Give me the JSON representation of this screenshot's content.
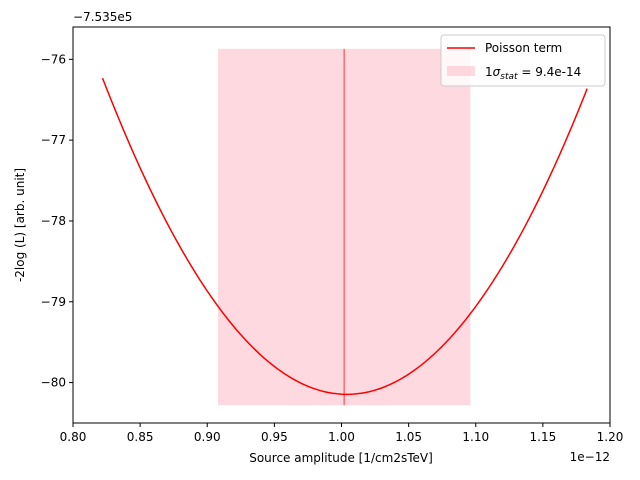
{
  "chart_data": {
    "type": "line",
    "xlabel": "Source amplitude [1/cm2sTeV]",
    "ylabel": "-2log (L) [arb. unit]",
    "x_offset_label": "1e−12",
    "y_offset_label": "−7.535e5",
    "x_scale_factor": 1e-12,
    "y_offset_value": -753500,
    "xlim": [
      0.8,
      1.2
    ],
    "ylim": [
      -80.5,
      -75.6
    ],
    "x_ticks": [
      0.8,
      0.85,
      0.9,
      0.95,
      1.0,
      1.05,
      1.1,
      1.15,
      1.2
    ],
    "x_tick_labels": [
      "0.80",
      "0.85",
      "0.90",
      "0.95",
      "1.00",
      "1.05",
      "1.10",
      "1.15",
      "1.20"
    ],
    "y_ticks": [
      -80,
      -79,
      -78,
      -77,
      -76
    ],
    "y_tick_labels": [
      "−80",
      "−79",
      "−78",
      "−77",
      "−76"
    ],
    "grid": false,
    "legend_position": "top-right",
    "series": [
      {
        "name": "Poisson term",
        "color": "#ff0000",
        "x": [
          0.822,
          0.85,
          0.88,
          0.91,
          0.94,
          0.97,
          1.0,
          1.03,
          1.06,
          1.09,
          1.12,
          1.15,
          1.183
        ],
        "y": [
          -76.05,
          -77.33,
          -78.46,
          -79.27,
          -79.78,
          -80.02,
          -80.07,
          -79.96,
          -79.68,
          -79.21,
          -78.55,
          -77.65,
          -76.45
        ]
      }
    ],
    "vline": {
      "x": 1.002,
      "y_range": [
        -80.28,
        -75.87
      ],
      "color": "#ff0000"
    },
    "band": {
      "label_prefix": "1",
      "label_sigma": "σ",
      "label_subscript": "stat",
      "label_value": " = 9.4e-14",
      "x_range": [
        0.908,
        1.096
      ],
      "y_range": [
        -80.28,
        -75.87
      ],
      "color": "#ffc0cb"
    }
  }
}
